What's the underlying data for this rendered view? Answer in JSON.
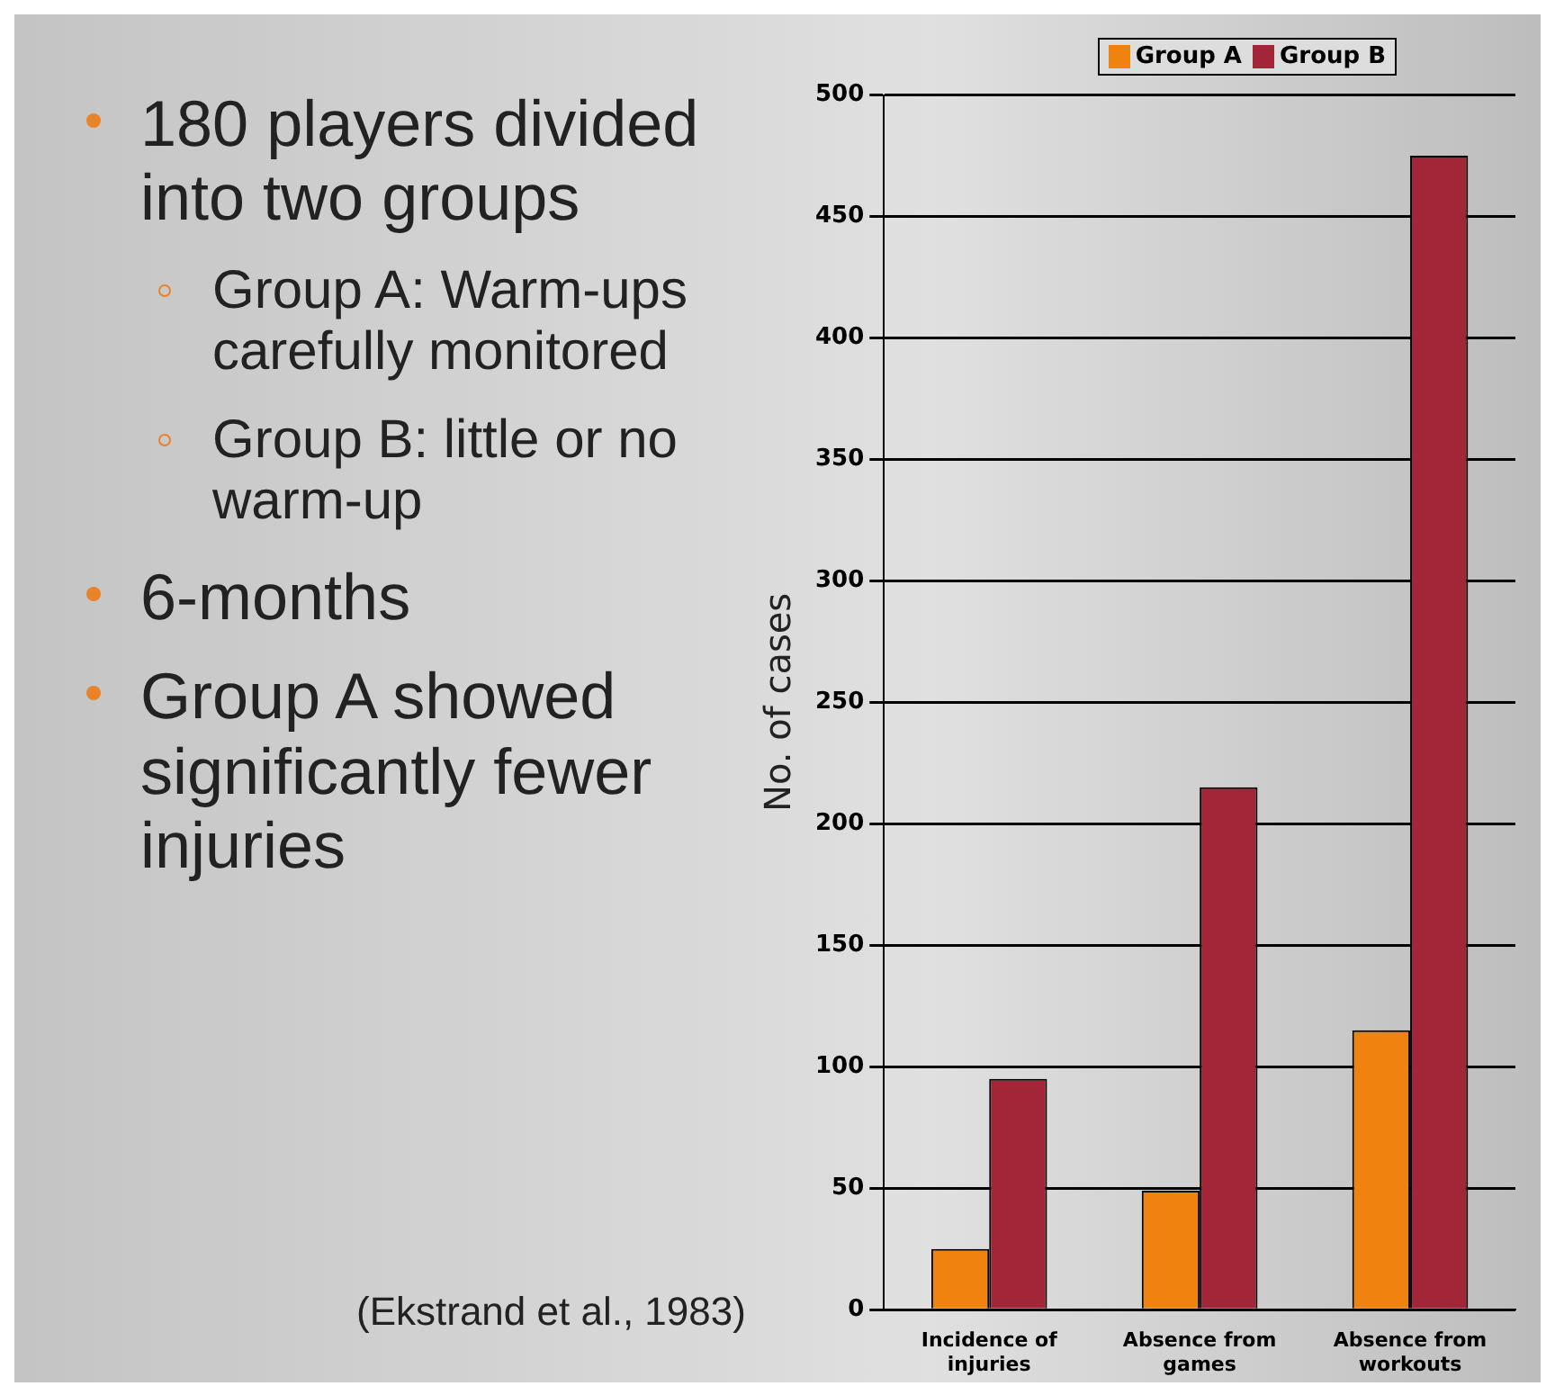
{
  "chart_data": {
    "type": "bar",
    "ylabel": "No. of cases",
    "categories": [
      "Incidence of injuries",
      "Absence from games",
      "Absence from workouts"
    ],
    "series": [
      {
        "name": "Group A",
        "color": "#f0820f",
        "values": [
          25,
          49,
          115
        ]
      },
      {
        "name": "Group B",
        "color": "#a32638",
        "values": [
          95,
          215,
          475
        ]
      }
    ],
    "ylim": [
      0,
      500
    ],
    "yticks": [
      0,
      50,
      100,
      150,
      200,
      250,
      300,
      350,
      400,
      450,
      500
    ],
    "grid": "y",
    "legend": "top right",
    "annotations": [
      "180 players divided into two groups",
      "Group A: Warm-ups carefully monitored",
      "Group B: little or no warm-up",
      "6-months",
      "Group A showed significantly fewer injuries",
      "(Ekstrand et al., 1983)"
    ]
  }
}
